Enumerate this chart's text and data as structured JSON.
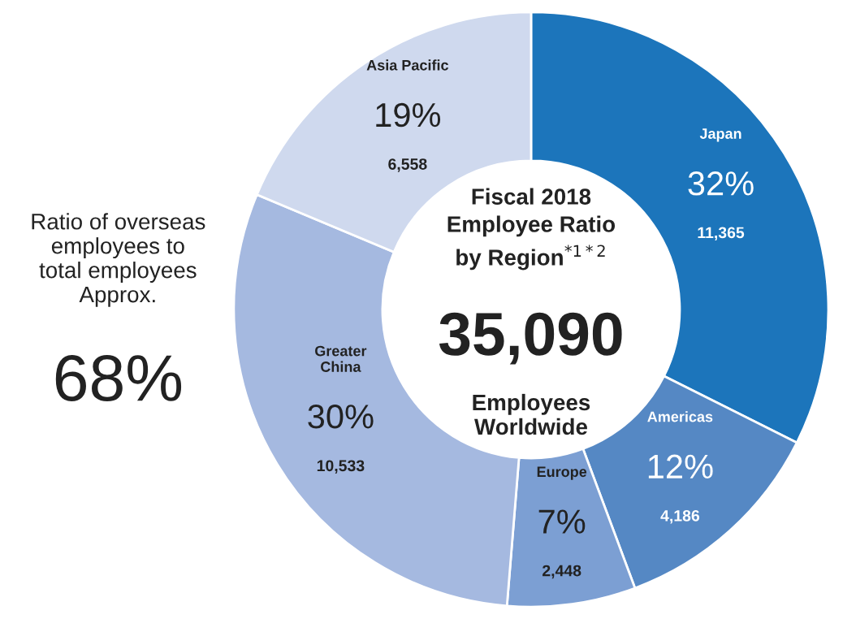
{
  "chart_data": {
    "type": "donut",
    "title": "Fiscal 2018\nEmployee Ratio\nby Region$^{*1*2}$",
    "categories": [
      "Japan",
      "Americas",
      "Europe",
      "Greater\nChina",
      "Asia Pacific"
    ],
    "values": [
      11365,
      4186,
      2448,
      10533,
      6558
    ],
    "colors": [
      "#1c75bb",
      "#5588c4",
      "#7c9fd3",
      "#a5b9e0",
      "#cfd9ee"
    ],
    "value_labels": [
      "32%\n11,365",
      "12%\n4,186",
      "7%\n2,448",
      "30%\n10,533",
      "19%\n6,558"
    ],
    "annotations": [
      "35,090",
      "Employees\nWorldwide",
      "Ratio of overseas\nemployees to\ntotal employees\nApprox.",
      "68%"
    ],
    "legend": false
  }
}
